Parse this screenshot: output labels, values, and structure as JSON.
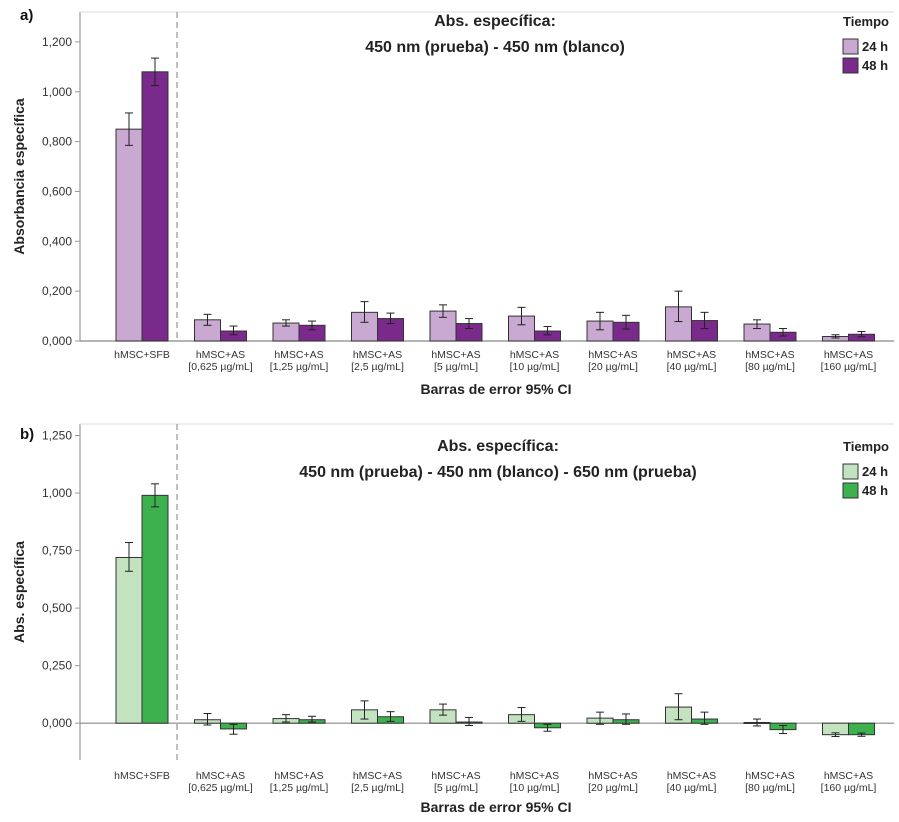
{
  "chart_data": [
    {
      "panel": "a)",
      "type": "bar",
      "title_line1": "Abs. específica:",
      "title_line2": "450 nm (prueba) - 450 nm (blanco)",
      "ylabel": "Absorbancia específica",
      "xlabel": "Barras de error 95% CI",
      "ylim": [
        0,
        1.32
      ],
      "yticks": [
        0,
        0.2,
        0.4,
        0.6,
        0.8,
        1.0,
        1.2
      ],
      "ytick_labels": [
        "0,000",
        "0,200",
        "0,400",
        "0,600",
        "0,800",
        "1,000",
        "1,200"
      ],
      "categories": [
        [
          "hMSC+SFB"
        ],
        [
          "hMSC+AS",
          "[0,625 µg/mL]"
        ],
        [
          "hMSC+AS",
          "[1,25 µg/mL]"
        ],
        [
          "hMSC+AS",
          "[2,5 µg/mL]"
        ],
        [
          "hMSC+AS",
          "[5 µg/mL]"
        ],
        [
          "hMSC+AS",
          "[10 µg/mL]"
        ],
        [
          "hMSC+AS",
          "[20 µg/mL]"
        ],
        [
          "hMSC+AS",
          "[40 µg/mL]"
        ],
        [
          "hMSC+AS",
          "[80 µg/mL]"
        ],
        [
          "hMSC+AS",
          "[160 µg/mL]"
        ]
      ],
      "legend_title": "Tiempo",
      "series": [
        {
          "name": "24 h",
          "color": "#c9a8d2",
          "values": [
            0.85,
            0.085,
            0.072,
            0.115,
            0.12,
            0.1,
            0.08,
            0.137,
            0.068,
            0.018
          ],
          "err_low": [
            0.785,
            0.063,
            0.06,
            0.075,
            0.095,
            0.065,
            0.045,
            0.078,
            0.05,
            0.012
          ],
          "err_high": [
            0.915,
            0.107,
            0.085,
            0.158,
            0.145,
            0.135,
            0.115,
            0.2,
            0.085,
            0.025
          ]
        },
        {
          "name": "48 h",
          "color": "#7a2a8a",
          "values": [
            1.08,
            0.04,
            0.063,
            0.09,
            0.07,
            0.04,
            0.075,
            0.082,
            0.035,
            0.027
          ],
          "err_low": [
            1.025,
            0.025,
            0.045,
            0.07,
            0.05,
            0.025,
            0.048,
            0.05,
            0.02,
            0.017
          ],
          "err_high": [
            1.135,
            0.06,
            0.08,
            0.112,
            0.09,
            0.058,
            0.103,
            0.115,
            0.05,
            0.038
          ]
        }
      ]
    },
    {
      "panel": "b)",
      "type": "bar",
      "title_line1": "Abs. específica:",
      "title_line2": "450 nm (prueba) - 450 nm (blanco) - 650 nm (prueba)",
      "ylabel": "Abs. específica",
      "xlabel": "Barras de error 95% CI",
      "ylim": [
        -0.16,
        1.3
      ],
      "yticks": [
        0,
        0.25,
        0.5,
        0.75,
        1.0,
        1.25
      ],
      "ytick_labels": [
        "0,000",
        "0,250",
        "0,500",
        "0,750",
        "1,000",
        "1,250"
      ],
      "categories": [
        [
          "hMSC+SFB"
        ],
        [
          "hMSC+AS",
          "[0,625 µg/mL]"
        ],
        [
          "hMSC+AS",
          "[1,25 µg/mL]"
        ],
        [
          "hMSC+AS",
          "[2,5 µg/mL]"
        ],
        [
          "hMSC+AS",
          "[5 µg/mL]"
        ],
        [
          "hMSC+AS",
          "[10 µg/mL]"
        ],
        [
          "hMSC+AS",
          "[20 µg/mL]"
        ],
        [
          "hMSC+AS",
          "[40 µg/mL]"
        ],
        [
          "hMSC+AS",
          "[80 µg/mL]"
        ],
        [
          "hMSC+AS",
          "[160 µg/mL]"
        ]
      ],
      "legend_title": "Tiempo",
      "series": [
        {
          "name": "24 h",
          "color": "#c2e2c0",
          "values": [
            0.72,
            0.015,
            0.02,
            0.058,
            0.058,
            0.037,
            0.022,
            0.07,
            0.003,
            -0.05
          ],
          "err_low": [
            0.66,
            -0.008,
            0.005,
            0.018,
            0.035,
            0.008,
            -0.005,
            0.015,
            -0.012,
            -0.058
          ],
          "err_high": [
            0.785,
            0.042,
            0.037,
            0.097,
            0.083,
            0.068,
            0.048,
            0.128,
            0.018,
            -0.042
          ]
        },
        {
          "name": "48 h",
          "color": "#3db14e",
          "values": [
            0.99,
            -0.025,
            0.015,
            0.028,
            0.005,
            -0.02,
            0.015,
            0.018,
            -0.028,
            -0.05
          ],
          "err_low": [
            0.94,
            -0.048,
            0.005,
            0.008,
            -0.01,
            -0.035,
            -0.005,
            -0.005,
            -0.045,
            -0.057
          ],
          "err_high": [
            1.04,
            -0.005,
            0.03,
            0.05,
            0.025,
            -0.005,
            0.04,
            0.048,
            -0.01,
            -0.043
          ]
        }
      ]
    }
  ]
}
